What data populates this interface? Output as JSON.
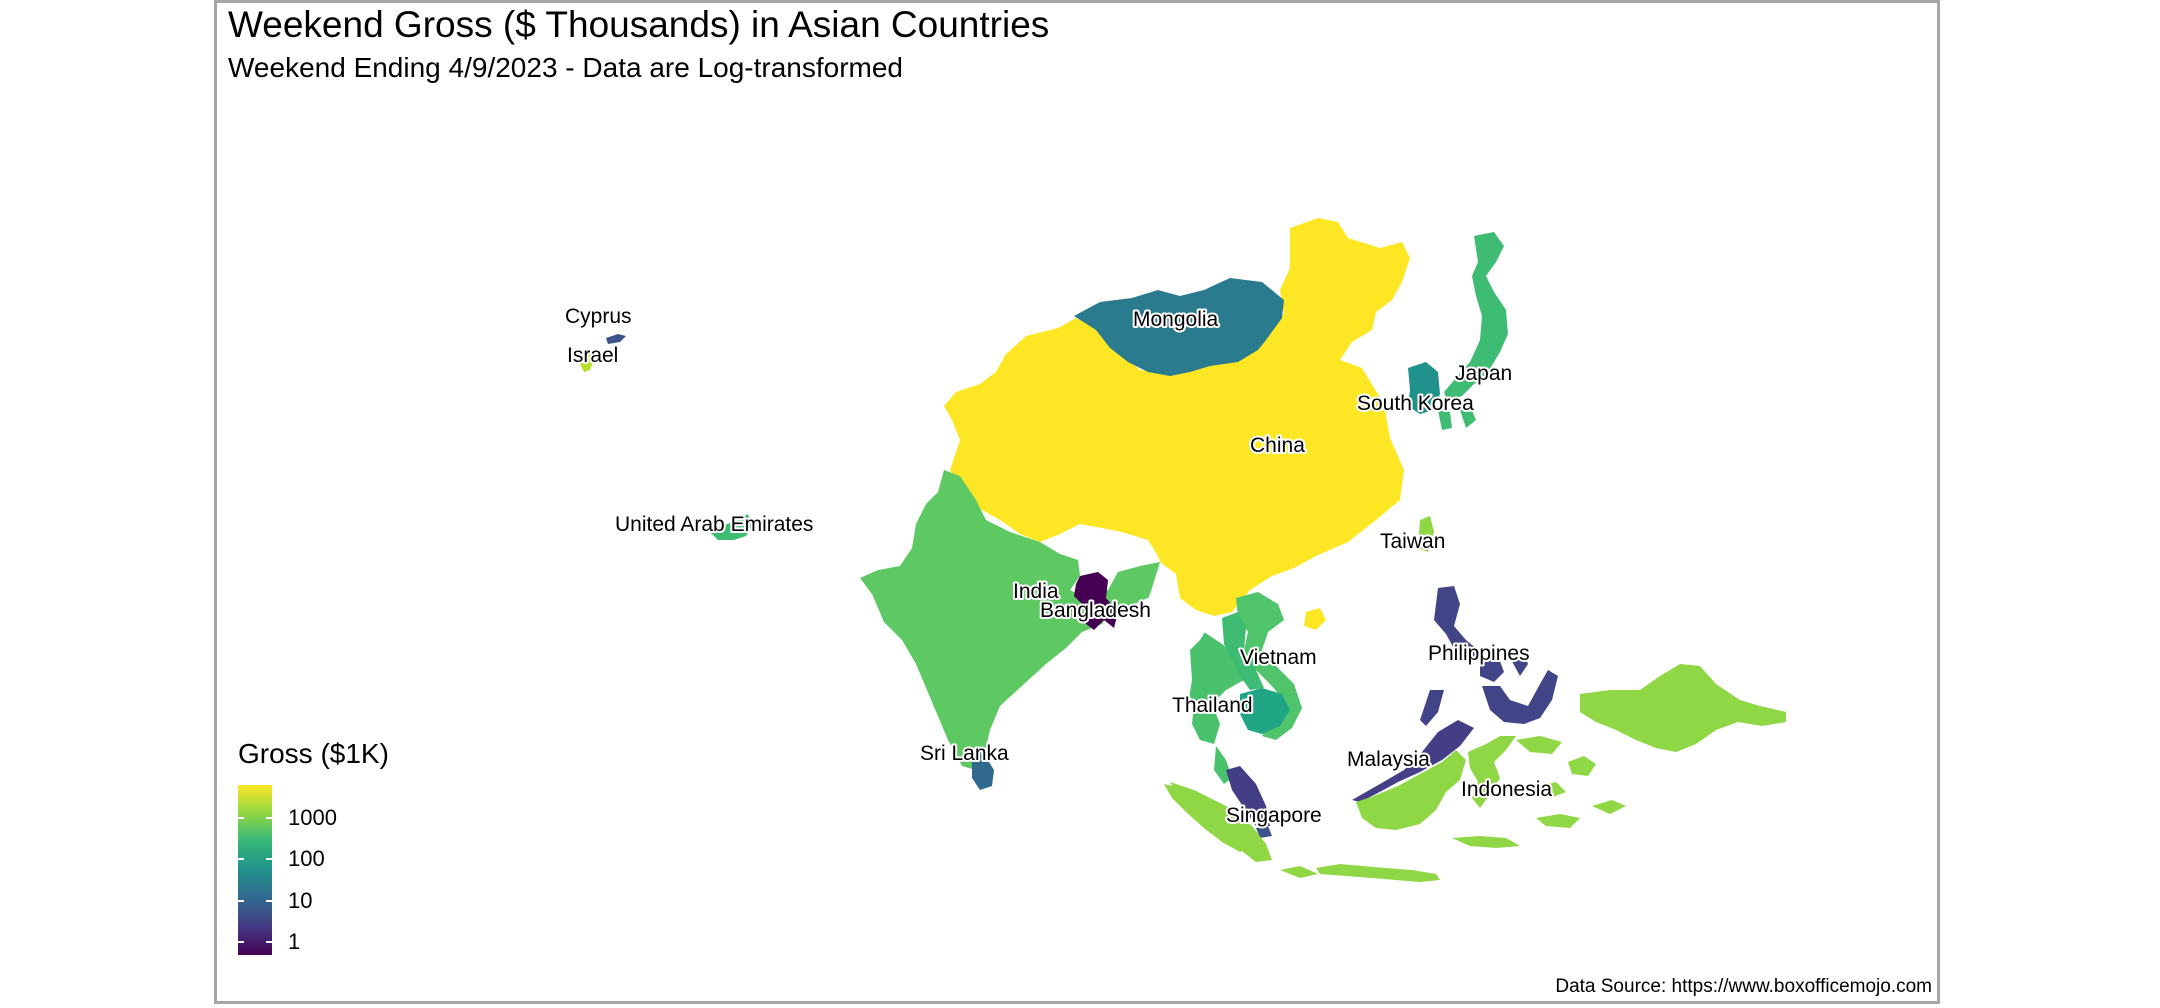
{
  "title": "Weekend Gross ($ Thousands) in Asian Countries",
  "subtitle": "Weekend Ending 4/9/2023 - Data are Log-transformed",
  "caption": "Data Source: https://www.boxofficemojo.com",
  "legend": {
    "title": "Gross ($1K)",
    "scale": "log10",
    "breaks": [
      {
        "value": 1000,
        "label": "1000"
      },
      {
        "value": 100,
        "label": "100"
      },
      {
        "value": 10,
        "label": "10"
      },
      {
        "value": 1,
        "label": "1"
      }
    ],
    "palette": [
      "#440154",
      "#443a83",
      "#31688e",
      "#21918c",
      "#35b779",
      "#8fd744",
      "#fde725"
    ]
  },
  "countries": [
    {
      "key": "china",
      "label": "China",
      "gross_k": 6000,
      "color": "#fde725"
    },
    {
      "key": "mongolia",
      "label": "Mongolia",
      "gross_k": 90,
      "color": "#2a7b8e"
    },
    {
      "key": "japan",
      "label": "Japan",
      "gross_k": 700,
      "color": "#3fbc73"
    },
    {
      "key": "south-korea",
      "label": "South Korea",
      "gross_k": 110,
      "color": "#21918c"
    },
    {
      "key": "taiwan",
      "label": "Taiwan",
      "gross_k": 1500,
      "color": "#8fd744"
    },
    {
      "key": "india",
      "label": "India",
      "gross_k": 900,
      "color": "#5ec962"
    },
    {
      "key": "bangladesh",
      "label": "Bangladesh",
      "gross_k": 1,
      "color": "#440154"
    },
    {
      "key": "sri-lanka",
      "label": "Sri Lanka",
      "gross_k": 40,
      "color": "#31688e"
    },
    {
      "key": "thailand",
      "label": "Thailand",
      "gross_k": 600,
      "color": "#4ac16d"
    },
    {
      "key": "vietnam",
      "label": "Vietnam",
      "gross_k": 700,
      "color": "#4fc46a"
    },
    {
      "key": "cambodia",
      "label": "",
      "gross_k": 150,
      "color": "#21a685"
    },
    {
      "key": "philippines",
      "label": "Philippines",
      "gross_k": 8,
      "color": "#414487"
    },
    {
      "key": "malaysia",
      "label": "Malaysia",
      "gross_k": 7,
      "color": "#433e85"
    },
    {
      "key": "singapore",
      "label": "Singapore",
      "gross_k": 10,
      "color": "#3b528b"
    },
    {
      "key": "indonesia",
      "label": "Indonesia",
      "gross_k": 1500,
      "color": "#8fd744"
    },
    {
      "key": "uae",
      "label": "United Arab Emirates",
      "gross_k": 800,
      "color": "#3fbc73"
    },
    {
      "key": "israel",
      "label": "Israel",
      "gross_k": 1500,
      "color": "#b5de2b"
    },
    {
      "key": "cyprus",
      "label": "Cyprus",
      "gross_k": 10,
      "color": "#3b528b"
    }
  ]
}
